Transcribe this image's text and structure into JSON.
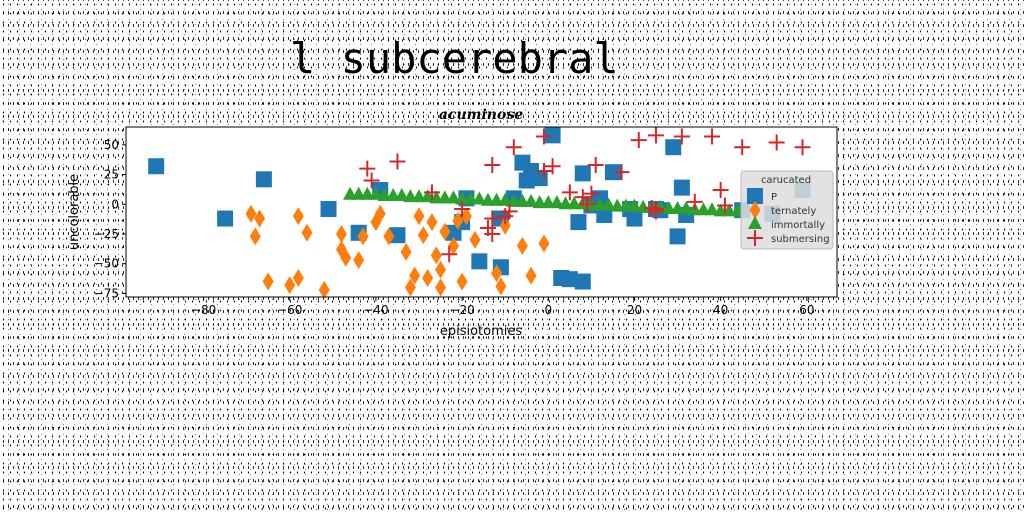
{
  "chart_data": {
    "type": "scatter",
    "title": "l subcerebral",
    "subtitle": "acuminose",
    "xlabel": "episiotomies",
    "ylabel": "uncolorable",
    "xlim": [
      -98,
      67
    ],
    "ylim": [
      -78,
      65
    ],
    "xticks": [
      -80,
      -60,
      -40,
      -20,
      0,
      20,
      40,
      60
    ],
    "yticks": [
      -75,
      -50,
      -25,
      0,
      25,
      50
    ],
    "legend": {
      "title": "carucated",
      "position": "right"
    },
    "series": [
      {
        "name": "P",
        "marker": "square",
        "color": "#1f77b4",
        "points": [
          [
            -91,
            32
          ],
          [
            -75,
            -12
          ],
          [
            -66,
            21
          ],
          [
            -51,
            -4
          ],
          [
            -44,
            -24
          ],
          [
            -39,
            12
          ],
          [
            -35,
            -26
          ],
          [
            -22,
            -24
          ],
          [
            -20,
            -15
          ],
          [
            -19,
            5
          ],
          [
            -16,
            -48
          ],
          [
            -11,
            -12
          ],
          [
            -11,
            -53
          ],
          [
            -8,
            5
          ],
          [
            -6,
            35
          ],
          [
            -5,
            20
          ],
          [
            -4,
            28
          ],
          [
            -2,
            22
          ],
          [
            1,
            58
          ],
          [
            3,
            -62
          ],
          [
            5,
            -63
          ],
          [
            7,
            -15
          ],
          [
            8,
            -65
          ],
          [
            8,
            26
          ],
          [
            10,
            -1
          ],
          [
            12,
            5
          ],
          [
            13,
            -9
          ],
          [
            15,
            27
          ],
          [
            19,
            -4
          ],
          [
            20,
            -12
          ],
          [
            25,
            -4
          ],
          [
            26,
            -5
          ],
          [
            29,
            48
          ],
          [
            30,
            -27
          ],
          [
            31,
            14
          ],
          [
            32,
            -9
          ],
          [
            45,
            -5
          ],
          [
            52,
            -8
          ],
          [
            59,
            12
          ]
        ]
      },
      {
        "name": "ternately",
        "marker": "diamond",
        "color": "#ff7f0e",
        "points": [
          [
            -69,
            -8
          ],
          [
            -68,
            -27
          ],
          [
            -67,
            -12
          ],
          [
            -65,
            -65
          ],
          [
            -60,
            -68
          ],
          [
            -58,
            -62
          ],
          [
            -58,
            -10
          ],
          [
            -56,
            -24
          ],
          [
            -52,
            -72
          ],
          [
            -48,
            -25
          ],
          [
            -48,
            -38
          ],
          [
            -47,
            -45
          ],
          [
            -44,
            -47
          ],
          [
            -43,
            -27
          ],
          [
            -40,
            -15
          ],
          [
            -39,
            -8
          ],
          [
            -37,
            -27
          ],
          [
            -33,
            -40
          ],
          [
            -32,
            -70
          ],
          [
            -31,
            -60
          ],
          [
            -30,
            -10
          ],
          [
            -29,
            -26
          ],
          [
            -28,
            -62
          ],
          [
            -27,
            -15
          ],
          [
            -26,
            -43
          ],
          [
            -25,
            -55
          ],
          [
            -25,
            -70
          ],
          [
            -24,
            -23
          ],
          [
            -22,
            -35
          ],
          [
            -21,
            -14
          ],
          [
            -20,
            -65
          ],
          [
            -19,
            -10
          ],
          [
            -17,
            -30
          ],
          [
            -12,
            -58
          ],
          [
            -11,
            -69
          ],
          [
            -10,
            -18
          ],
          [
            -6,
            -35
          ],
          [
            -4,
            -60
          ],
          [
            -1,
            -33
          ]
        ]
      },
      {
        "name": "immortally",
        "marker": "triangle",
        "color": "#2ca02c",
        "points": [
          [
            -46,
            8
          ],
          [
            -44,
            8
          ],
          [
            -42,
            8
          ],
          [
            -40,
            8
          ],
          [
            -38,
            7
          ],
          [
            -36,
            7
          ],
          [
            -34,
            7
          ],
          [
            -32,
            6
          ],
          [
            -30,
            6
          ],
          [
            -28,
            6
          ],
          [
            -26,
            5
          ],
          [
            -24,
            5
          ],
          [
            -22,
            5
          ],
          [
            -20,
            4
          ],
          [
            -18,
            4
          ],
          [
            -16,
            4
          ],
          [
            -14,
            3
          ],
          [
            -12,
            3
          ],
          [
            -10,
            3
          ],
          [
            -8,
            2
          ],
          [
            -6,
            2
          ],
          [
            -4,
            2
          ],
          [
            -2,
            1
          ],
          [
            0,
            1
          ],
          [
            2,
            1
          ],
          [
            4,
            0
          ],
          [
            6,
            0
          ],
          [
            8,
            0
          ],
          [
            10,
            -1
          ],
          [
            12,
            -1
          ],
          [
            14,
            -1
          ],
          [
            16,
            -2
          ],
          [
            18,
            -2
          ],
          [
            20,
            -2
          ],
          [
            22,
            -3
          ],
          [
            24,
            -3
          ],
          [
            26,
            -3
          ],
          [
            28,
            -4
          ],
          [
            30,
            -4
          ],
          [
            32,
            -4
          ],
          [
            34,
            -5
          ],
          [
            36,
            -5
          ],
          [
            38,
            -5
          ],
          [
            40,
            -6
          ],
          [
            42,
            -6
          ],
          [
            44,
            -6
          ]
        ]
      },
      {
        "name": "submersing",
        "marker": "plus",
        "color": "#d62728",
        "points": [
          [
            -42,
            30
          ],
          [
            -41,
            20
          ],
          [
            -35,
            36
          ],
          [
            -27,
            10
          ],
          [
            -23,
            -42
          ],
          [
            -20,
            -4
          ],
          [
            -14,
            -20
          ],
          [
            -13,
            -12
          ],
          [
            -13,
            -25
          ],
          [
            -13,
            33
          ],
          [
            -10,
            -10
          ],
          [
            -9,
            -6
          ],
          [
            -8,
            48
          ],
          [
            -1,
            57
          ],
          [
            -1,
            28
          ],
          [
            1,
            32
          ],
          [
            5,
            10
          ],
          [
            8,
            6
          ],
          [
            9,
            0
          ],
          [
            10,
            9
          ],
          [
            11,
            33
          ],
          [
            17,
            27
          ],
          [
            21,
            54
          ],
          [
            24,
            -3
          ],
          [
            25,
            -6
          ],
          [
            25,
            58
          ],
          [
            25,
            -4
          ],
          [
            31,
            57
          ],
          [
            34,
            2
          ],
          [
            38,
            57
          ],
          [
            40,
            12
          ],
          [
            41,
            -1
          ],
          [
            45,
            48
          ],
          [
            53,
            52
          ],
          [
            59,
            48
          ]
        ]
      }
    ]
  }
}
